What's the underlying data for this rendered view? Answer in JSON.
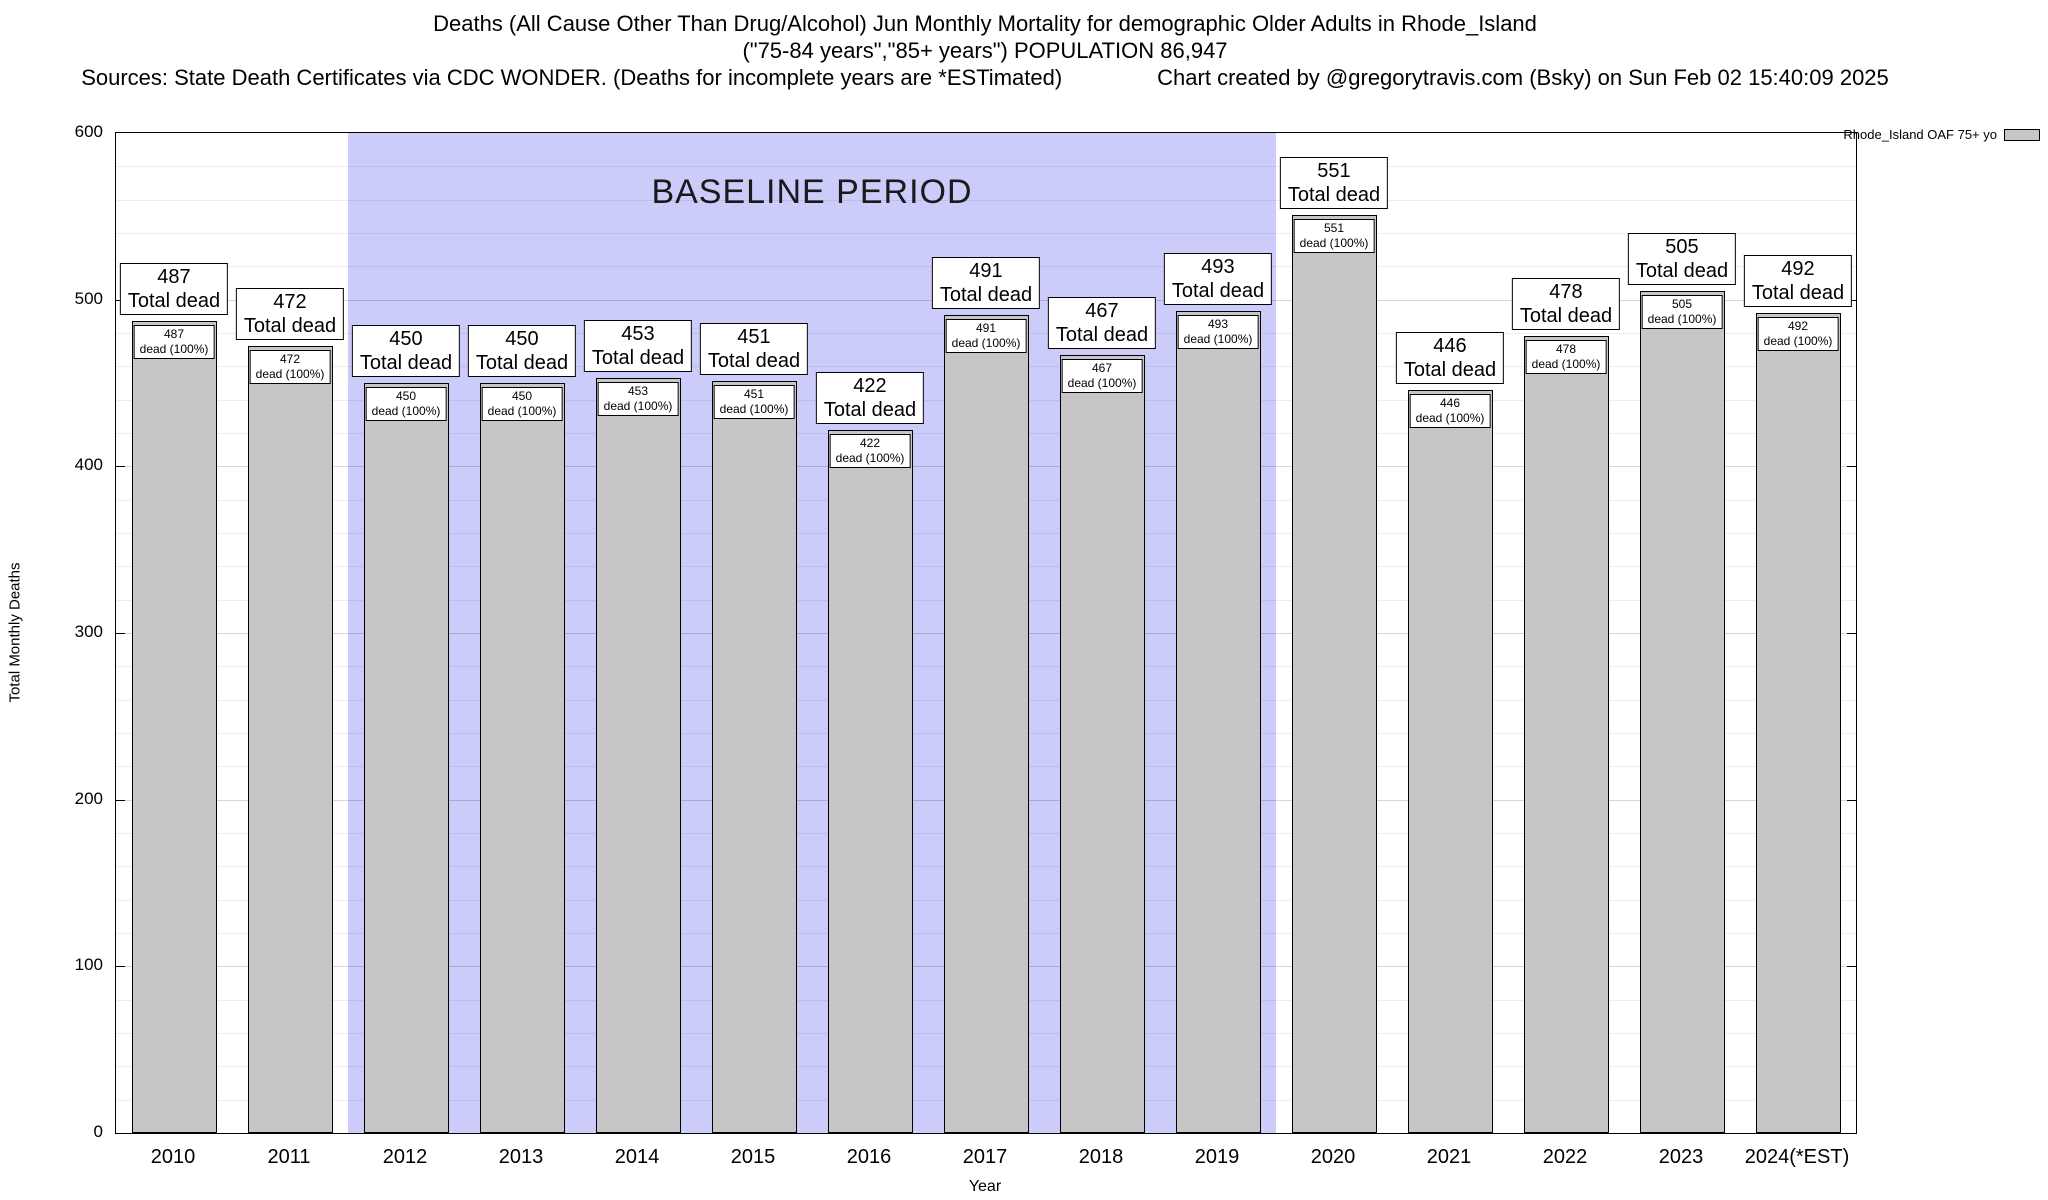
{
  "header": {
    "title_line1": "Deaths (All Cause Other Than Drug/Alcohol) Jun Monthly Mortality for demographic Older Adults in Rhode_Island",
    "title_line2": "(\"75-84 years\",\"85+ years\") POPULATION 86,947",
    "sources": "Sources: State Death Certificates via CDC WONDER. (Deaths for incomplete years are *ESTimated)",
    "credit": "Chart created by @gregorytravis.com (Bsky) on Sun Feb 02 15:40:09 2025"
  },
  "chart_data": {
    "type": "bar",
    "title": "Deaths (All Cause Other Than Drug/Alcohol) Jun Monthly Mortality for demographic Older Adults in Rhode_Island",
    "subtitle": "(\"75-84 years\",\"85+ years\") POPULATION 86,947",
    "categories": [
      "2010",
      "2011",
      "2012",
      "2013",
      "2014",
      "2015",
      "2016",
      "2017",
      "2018",
      "2019",
      "2020",
      "2021",
      "2022",
      "2023",
      "2024(*EST)"
    ],
    "values": [
      487,
      472,
      450,
      450,
      453,
      451,
      422,
      491,
      467,
      493,
      551,
      446,
      478,
      505,
      492
    ],
    "xlabel": "Year",
    "ylabel": "Total Monthly Deaths",
    "ylim": [
      0,
      600
    ],
    "ytick_step": 100,
    "minor_ytick_step": 20,
    "grid": true,
    "bar_color": "#c6c6c6",
    "bar_border_color": "#000000",
    "legend": {
      "label": "Rhode_Island OAF 75+ yo",
      "position": "top-right-outside"
    },
    "baseline_band": {
      "label": "BASELINE PERIOD",
      "start_category": "2012",
      "end_category": "2019",
      "color": "#ccccfb"
    },
    "annotations": {
      "top_label_suffix": "Total dead",
      "inner_label_suffix": "dead (100%)"
    }
  }
}
